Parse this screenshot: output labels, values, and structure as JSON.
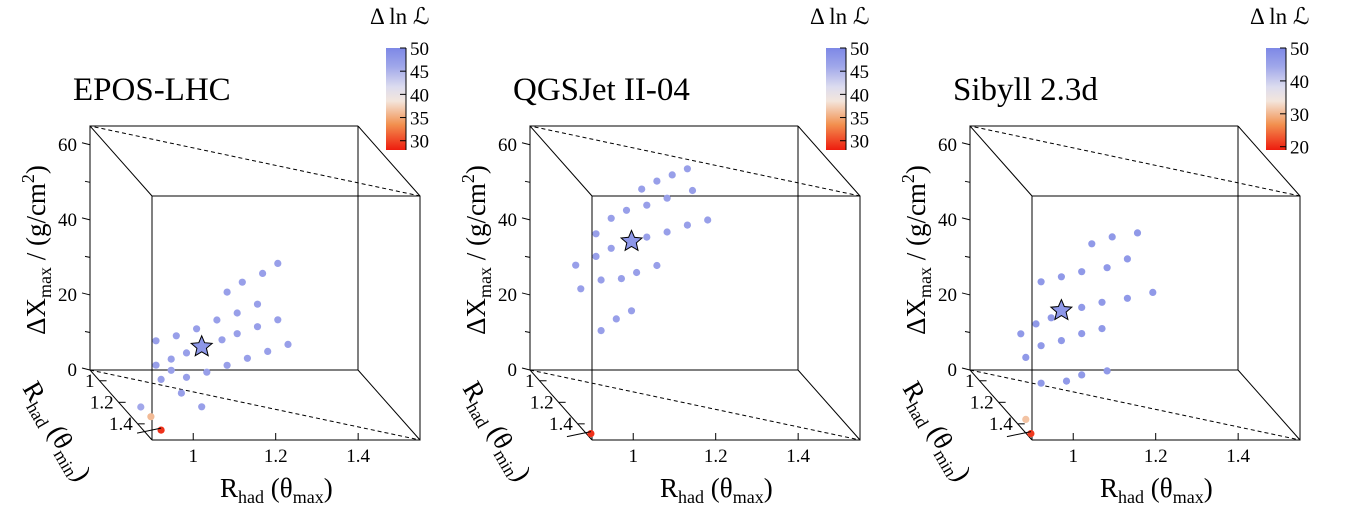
{
  "chart_data": [
    {
      "type": "scatter",
      "title": "EPOS-LHC",
      "zlabel_main": "ΔX",
      "zlabel_sub": "max",
      "zlabel_unit_pre": " / (g/cm",
      "zlabel_unit_sup": "2",
      "zlabel_unit_post": ")",
      "xlabel_main": "R",
      "xlabel_sub": "had",
      "xlabel_arg_pre": " (θ",
      "xlabel_arg_sub": "max",
      "xlabel_arg_post": ")",
      "ylabel_main": "R",
      "ylabel_sub": "had",
      "ylabel_arg_pre": " (θ",
      "ylabel_arg_sub": "min",
      "ylabel_arg_post": ")",
      "xlim": [
        0.9,
        1.55
      ],
      "ylim": [
        0.9,
        1.55
      ],
      "zlim": [
        0,
        65
      ],
      "x_ticks": [
        "1",
        "1.2",
        "1.4"
      ],
      "y_ticks": [
        "1",
        "1.2",
        "1.4"
      ],
      "z_ticks": [
        "0",
        "20",
        "40",
        "60"
      ],
      "colorbar": {
        "label": "Δ ln ℒ",
        "min": 28,
        "max": 50,
        "ticks": [
          "30",
          "35",
          "40",
          "45",
          "50"
        ]
      },
      "best_fit": {
        "x": 1.12,
        "z": 12.5
      },
      "points": [
        {
          "x": 1.03,
          "z": 5.0,
          "v": 47
        },
        {
          "x": 1.06,
          "z": 7.5,
          "v": 47
        },
        {
          "x": 1.09,
          "z": 10.0,
          "v": 47
        },
        {
          "x": 1.12,
          "z": 12.5,
          "v": 47
        },
        {
          "x": 1.16,
          "z": 15.5,
          "v": 47
        },
        {
          "x": 1.19,
          "z": 18.0,
          "v": 47
        },
        {
          "x": 1.23,
          "z": 21.0,
          "v": 47
        },
        {
          "x": 1.27,
          "z": 24.0,
          "v": 47
        },
        {
          "x": 1.03,
          "z": 11.5,
          "v": 47
        },
        {
          "x": 1.07,
          "z": 14.0,
          "v": 47
        },
        {
          "x": 1.11,
          "z": 17.0,
          "v": 47
        },
        {
          "x": 1.15,
          "z": 20.5,
          "v": 47
        },
        {
          "x": 1.19,
          "z": 23.5,
          "v": 47
        },
        {
          "x": 1.23,
          "z": 27.0,
          "v": 47
        },
        {
          "x": 1.04,
          "z": 1.5,
          "v": 47
        },
        {
          "x": 1.09,
          "z": 3.5,
          "v": 47
        },
        {
          "x": 1.13,
          "z": 6.0,
          "v": 47
        },
        {
          "x": 1.17,
          "z": 9.0,
          "v": 47
        },
        {
          "x": 1.21,
          "z": 12.0,
          "v": 47
        },
        {
          "x": 1.25,
          "z": 15.0,
          "v": 47
        },
        {
          "x": 1.29,
          "z": 18.0,
          "v": 47
        },
        {
          "x": 1.17,
          "z": 28.5,
          "v": 47
        },
        {
          "x": 1.2,
          "z": 32.0,
          "v": 47
        },
        {
          "x": 1.24,
          "z": 35.5,
          "v": 47
        },
        {
          "x": 1.27,
          "z": 39.0,
          "v": 47
        },
        {
          "x": 1.06,
          "z": 4.5,
          "v": 47
        },
        {
          "x": 1.08,
          "z": -1.0,
          "v": 47
        },
        {
          "x": 1.12,
          "z": -3.5,
          "v": 47
        },
        {
          "x": 1.0,
          "z": -7.0,
          "v": 46
        },
        {
          "x": 1.02,
          "z": -9.0,
          "v": 36
        },
        {
          "x": 1.04,
          "z": -12.0,
          "v": 29
        }
      ]
    },
    {
      "type": "scatter",
      "title": "QGSJet II-04",
      "zlabel_main": "ΔX",
      "zlabel_sub": "max",
      "zlabel_unit_pre": " / (g/cm",
      "zlabel_unit_sup": "2",
      "zlabel_unit_post": ")",
      "xlabel_main": "R",
      "xlabel_sub": "had",
      "xlabel_arg_pre": " (θ",
      "xlabel_arg_sub": "max",
      "xlabel_arg_post": ")",
      "ylabel_main": "R",
      "ylabel_sub": "had",
      "ylabel_arg_pre": " (θ",
      "ylabel_arg_sub": "min",
      "ylabel_arg_post": ")",
      "xlim": [
        0.9,
        1.55
      ],
      "ylim": [
        0.9,
        1.55
      ],
      "zlim": [
        0,
        65
      ],
      "x_ticks": [
        "1",
        "1.2",
        "1.4"
      ],
      "y_ticks": [
        "1",
        "1.2",
        "1.4"
      ],
      "z_ticks": [
        "0",
        "20",
        "40",
        "60"
      ],
      "colorbar": {
        "label": "Δ ln ℒ",
        "min": 28,
        "max": 50,
        "ticks": [
          "30",
          "35",
          "40",
          "45",
          "50"
        ]
      },
      "best_fit": {
        "x": 1.1,
        "z": 40.0
      },
      "points": [
        {
          "x": 1.04,
          "z": 14.5,
          "v": 47
        },
        {
          "x": 1.07,
          "z": 18.5,
          "v": 47
        },
        {
          "x": 1.1,
          "z": 21.5,
          "v": 47
        },
        {
          "x": 1.0,
          "z": 24.5,
          "v": 47
        },
        {
          "x": 1.04,
          "z": 28.0,
          "v": 47
        },
        {
          "x": 1.08,
          "z": 29.5,
          "v": 47
        },
        {
          "x": 1.11,
          "z": 32.0,
          "v": 47
        },
        {
          "x": 1.15,
          "z": 35.0,
          "v": 47
        },
        {
          "x": 0.99,
          "z": 30.5,
          "v": 47
        },
        {
          "x": 1.03,
          "z": 34.0,
          "v": 47
        },
        {
          "x": 1.06,
          "z": 37.0,
          "v": 47
        },
        {
          "x": 1.1,
          "z": 40.0,
          "v": 47
        },
        {
          "x": 1.13,
          "z": 42.0,
          "v": 47
        },
        {
          "x": 1.17,
          "z": 44.5,
          "v": 47
        },
        {
          "x": 1.21,
          "z": 47.5,
          "v": 47
        },
        {
          "x": 1.25,
          "z": 50.0,
          "v": 47
        },
        {
          "x": 1.03,
          "z": 40.0,
          "v": 47
        },
        {
          "x": 1.06,
          "z": 45.0,
          "v": 47
        },
        {
          "x": 1.09,
          "z": 48.0,
          "v": 47
        },
        {
          "x": 1.13,
          "z": 50.5,
          "v": 47
        },
        {
          "x": 1.17,
          "z": 53.5,
          "v": 47
        },
        {
          "x": 1.22,
          "z": 57.0,
          "v": 47
        },
        {
          "x": 1.12,
          "z": 54.5,
          "v": 47
        },
        {
          "x": 1.15,
          "z": 57.5,
          "v": 47
        },
        {
          "x": 1.18,
          "z": 60.0,
          "v": 47
        },
        {
          "x": 1.21,
          "z": 62.5,
          "v": 47
        },
        {
          "x": 1.02,
          "z": -13.5,
          "v": 29
        }
      ]
    },
    {
      "type": "scatter",
      "title": "Sibyll 2.3d",
      "zlabel_main": "ΔX",
      "zlabel_sub": "max",
      "zlabel_unit_pre": " / (g/cm",
      "zlabel_unit_sup": "2",
      "zlabel_unit_post": ")",
      "xlabel_main": "R",
      "xlabel_sub": "had",
      "xlabel_arg_pre": " (θ",
      "xlabel_arg_sub": "max",
      "xlabel_arg_post": ")",
      "ylabel_main": "R",
      "ylabel_sub": "had",
      "ylabel_arg_pre": " (θ",
      "ylabel_arg_sub": "min",
      "ylabel_arg_post": ")",
      "xlim": [
        0.9,
        1.55
      ],
      "ylim": [
        0.9,
        1.55
      ],
      "zlim": [
        0,
        65
      ],
      "x_ticks": [
        "1",
        "1.2",
        "1.4"
      ],
      "y_ticks": [
        "1",
        "1.2",
        "1.4"
      ],
      "z_ticks": [
        "0",
        "20",
        "40",
        "60"
      ],
      "colorbar": {
        "label": "Δ ln ℒ",
        "min": 19,
        "max": 50,
        "ticks": [
          "20",
          "30",
          "40",
          "50"
        ]
      },
      "best_fit": {
        "x": 1.08,
        "z": 21.0
      },
      "points": [
        {
          "x": 1.04,
          "z": 0.5,
          "v": 47
        },
        {
          "x": 1.09,
          "z": 2.5,
          "v": 47
        },
        {
          "x": 1.12,
          "z": 5.0,
          "v": 47
        },
        {
          "x": 1.17,
          "z": 7.5,
          "v": 47
        },
        {
          "x": 1.01,
          "z": 6.5,
          "v": 47
        },
        {
          "x": 1.04,
          "z": 10.5,
          "v": 47
        },
        {
          "x": 1.08,
          "z": 13.0,
          "v": 47
        },
        {
          "x": 1.12,
          "z": 16.0,
          "v": 47
        },
        {
          "x": 1.16,
          "z": 18.5,
          "v": 47
        },
        {
          "x": 1.0,
          "z": 12.5,
          "v": 47
        },
        {
          "x": 1.03,
          "z": 16.0,
          "v": 47
        },
        {
          "x": 1.06,
          "z": 18.5,
          "v": 47
        },
        {
          "x": 1.08,
          "z": 21.0,
          "v": 47
        },
        {
          "x": 1.12,
          "z": 23.0,
          "v": 47
        },
        {
          "x": 1.16,
          "z": 25.5,
          "v": 47
        },
        {
          "x": 1.21,
          "z": 28.0,
          "v": 47
        },
        {
          "x": 1.26,
          "z": 31.0,
          "v": 47
        },
        {
          "x": 1.04,
          "z": 27.5,
          "v": 47
        },
        {
          "x": 1.08,
          "z": 30.0,
          "v": 47
        },
        {
          "x": 1.12,
          "z": 32.5,
          "v": 47
        },
        {
          "x": 1.17,
          "z": 35.0,
          "v": 47
        },
        {
          "x": 1.21,
          "z": 38.5,
          "v": 47
        },
        {
          "x": 1.14,
          "z": 40.5,
          "v": 47
        },
        {
          "x": 1.18,
          "z": 43.5,
          "v": 47
        },
        {
          "x": 1.23,
          "z": 46.0,
          "v": 47
        },
        {
          "x": 1.01,
          "z": -10.0,
          "v": 31
        },
        {
          "x": 1.02,
          "z": -13.5,
          "v": 21
        }
      ]
    }
  ]
}
